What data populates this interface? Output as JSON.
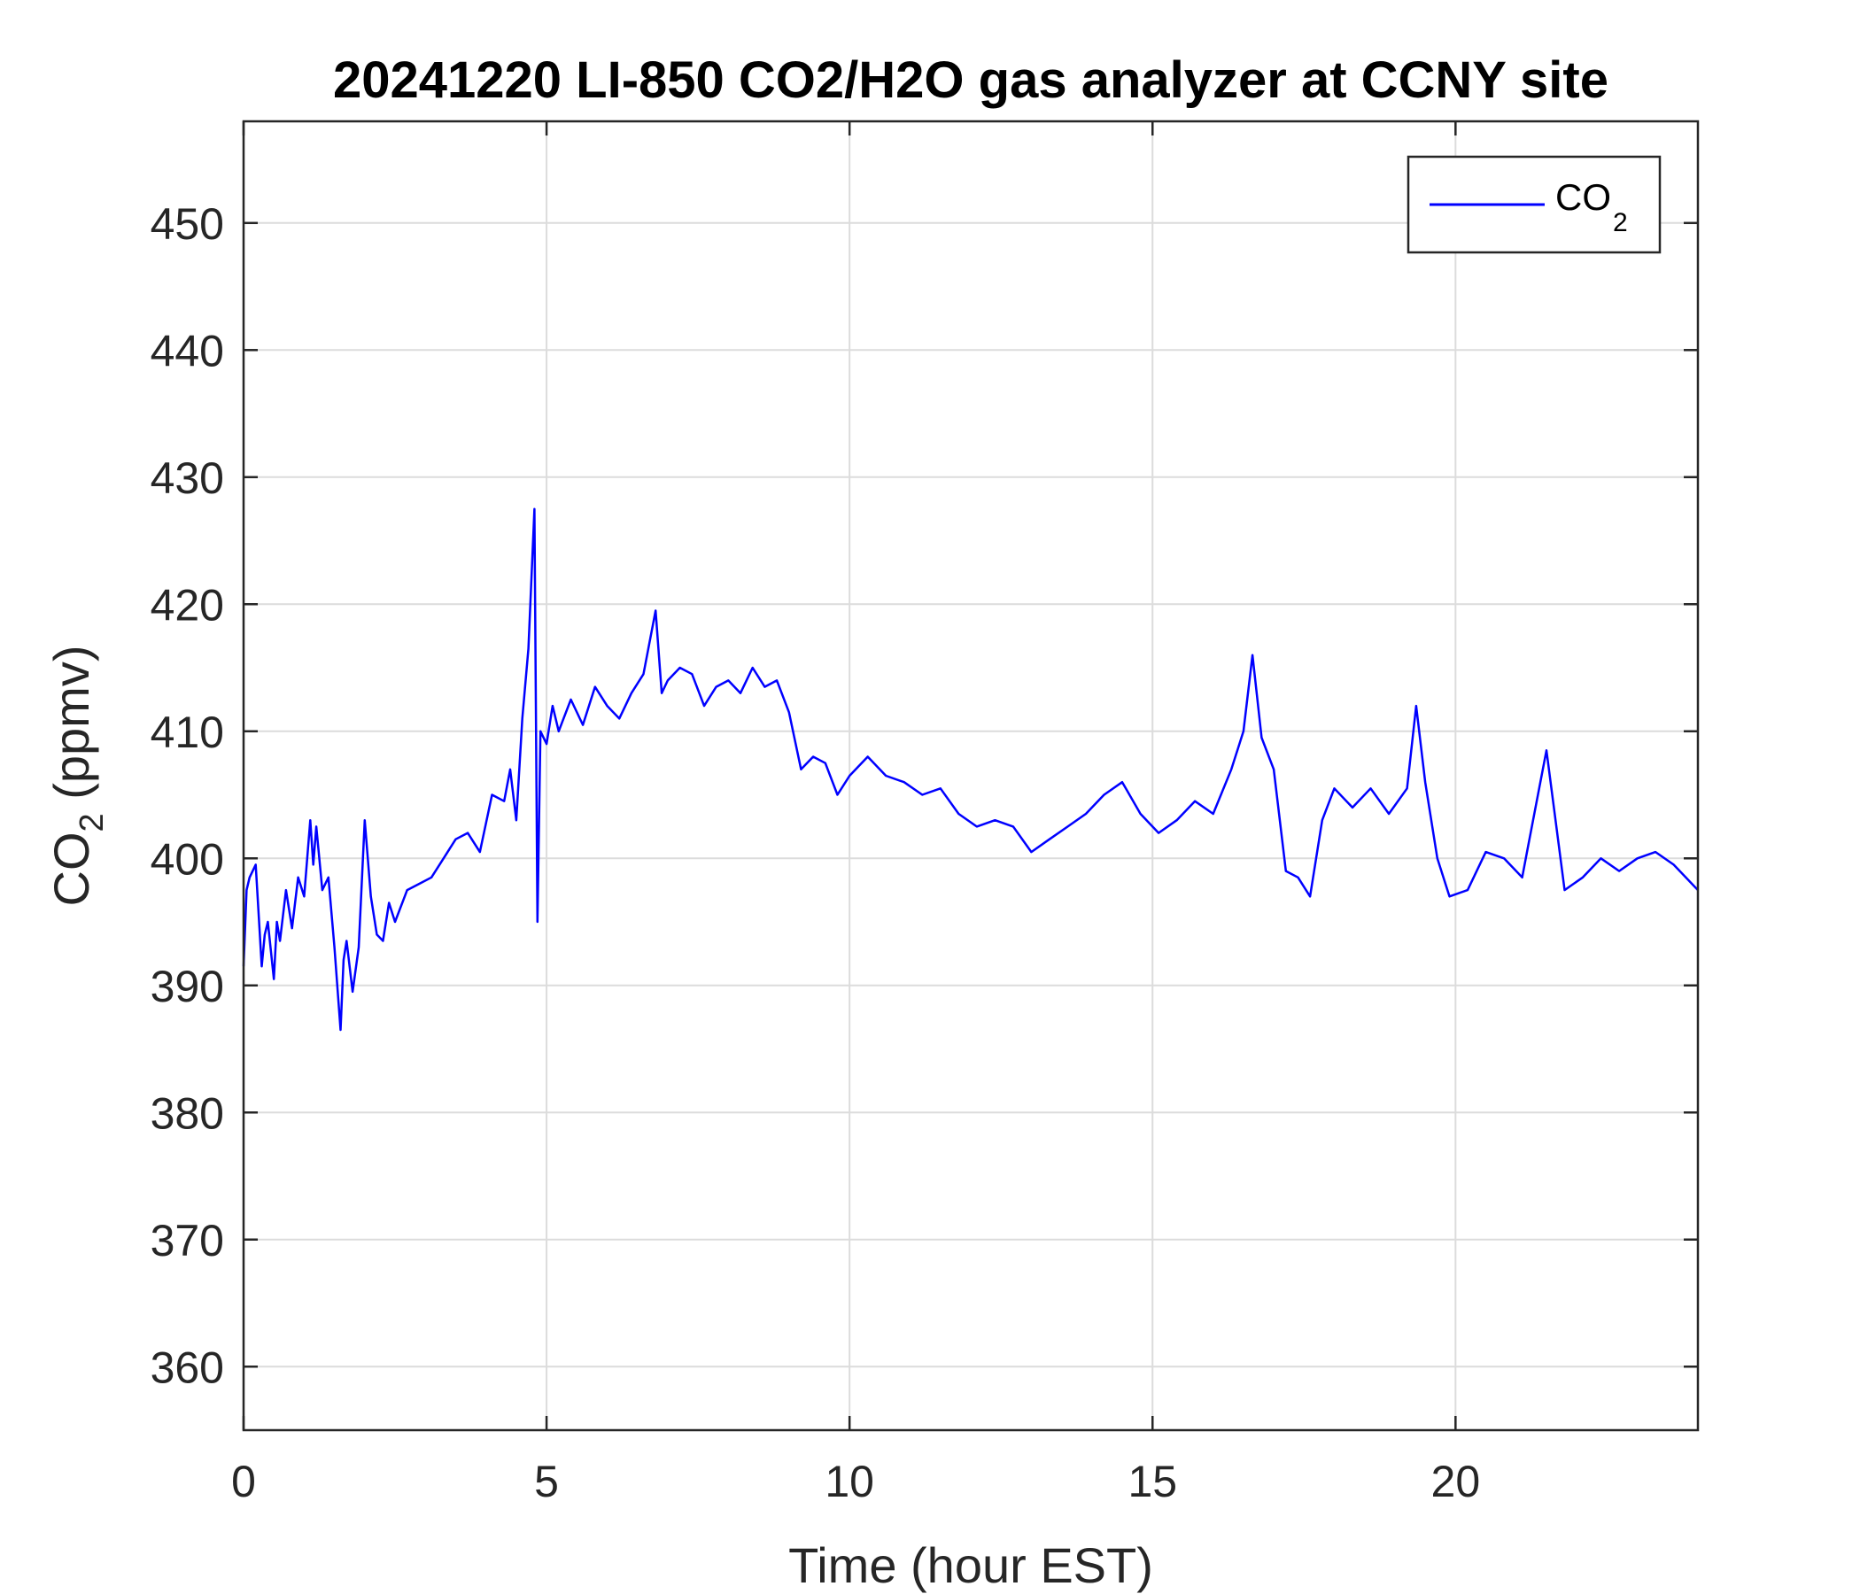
{
  "chart_data": {
    "type": "line",
    "title": "20241220 LI-850 CO2/H2O gas analyzer at CCNY site",
    "xlabel": "Time (hour EST)",
    "ylabel": {
      "main": "CO",
      "sub": "2",
      "suffix": " (ppmv)"
    },
    "xlim": [
      0,
      24
    ],
    "ylim": [
      355,
      458
    ],
    "xticks": [
      0,
      5,
      10,
      15,
      20
    ],
    "yticks": [
      360,
      370,
      380,
      390,
      400,
      410,
      420,
      430,
      440,
      450
    ],
    "grid": true,
    "legend_position": "top-right",
    "series": [
      {
        "name": {
          "main": "CO",
          "sub": "2"
        },
        "color": "#0000ff",
        "x": [
          0,
          0.05,
          0.1,
          0.2,
          0.3,
          0.35,
          0.4,
          0.5,
          0.55,
          0.6,
          0.7,
          0.8,
          0.9,
          1.0,
          1.1,
          1.15,
          1.2,
          1.3,
          1.4,
          1.5,
          1.6,
          1.65,
          1.7,
          1.8,
          1.9,
          2.0,
          2.1,
          2.2,
          2.3,
          2.4,
          2.5,
          2.7,
          2.9,
          3.1,
          3.3,
          3.5,
          3.7,
          3.9,
          4.1,
          4.3,
          4.4,
          4.5,
          4.6,
          4.7,
          4.8,
          4.85,
          4.9,
          5.0,
          5.1,
          5.2,
          5.4,
          5.6,
          5.8,
          6.0,
          6.2,
          6.4,
          6.6,
          6.8,
          6.9,
          7.0,
          7.2,
          7.4,
          7.6,
          7.8,
          8.0,
          8.2,
          8.4,
          8.6,
          8.8,
          9.0,
          9.2,
          9.4,
          9.6,
          9.8,
          10.0,
          10.3,
          10.6,
          10.9,
          11.2,
          11.5,
          11.8,
          12.1,
          12.4,
          12.7,
          13.0,
          13.3,
          13.6,
          13.9,
          14.2,
          14.5,
          14.8,
          15.1,
          15.4,
          15.7,
          16.0,
          16.3,
          16.5,
          16.65,
          16.8,
          17.0,
          17.2,
          17.4,
          17.6,
          17.8,
          18.0,
          18.3,
          18.6,
          18.9,
          19.2,
          19.35,
          19.5,
          19.7,
          19.9,
          20.2,
          20.5,
          20.8,
          21.1,
          21.2,
          21.5,
          21.8,
          22.1,
          22.4,
          22.7,
          23.0,
          23.3,
          23.6,
          24.0
        ],
        "values": [
          391.5,
          397.5,
          398.5,
          399.5,
          391.5,
          394.0,
          395.0,
          390.5,
          395.0,
          393.5,
          397.5,
          394.5,
          398.5,
          397.0,
          403.0,
          399.5,
          402.5,
          397.5,
          398.5,
          393.0,
          386.5,
          392.0,
          393.5,
          389.5,
          393.0,
          403.0,
          397.0,
          394.0,
          393.5,
          396.5,
          395.0,
          397.5,
          398.0,
          398.5,
          400.0,
          401.5,
          402.0,
          400.5,
          405.0,
          404.5,
          407.0,
          403.0,
          411.0,
          416.5,
          427.5,
          395.0,
          410.0,
          409.0,
          412.0,
          410.0,
          412.5,
          410.5,
          413.5,
          412.0,
          411.0,
          413.0,
          414.5,
          419.5,
          413.0,
          414.0,
          415.0,
          414.5,
          412.0,
          413.5,
          414.0,
          413.0,
          415.0,
          413.5,
          414.0,
          411.5,
          407.0,
          408.0,
          407.5,
          405.0,
          406.5,
          408.0,
          406.5,
          406.0,
          405.0,
          405.5,
          403.5,
          402.5,
          403.0,
          402.5,
          400.5,
          401.5,
          402.5,
          403.5,
          405.0,
          406.0,
          403.5,
          402.0,
          403.0,
          404.5,
          403.5,
          407.0,
          410.0,
          416.0,
          409.5,
          407.0,
          399.0,
          398.5,
          397.0,
          403.0,
          405.5,
          404.0,
          405.5,
          403.5,
          405.5,
          412.0,
          406.0,
          400.0,
          397.0,
          397.5,
          400.5,
          400.0,
          398.5,
          401.0,
          408.5,
          397.5,
          398.5,
          400.0,
          399.0,
          400.0,
          400.5,
          399.5,
          397.5
        ]
      }
    ]
  }
}
